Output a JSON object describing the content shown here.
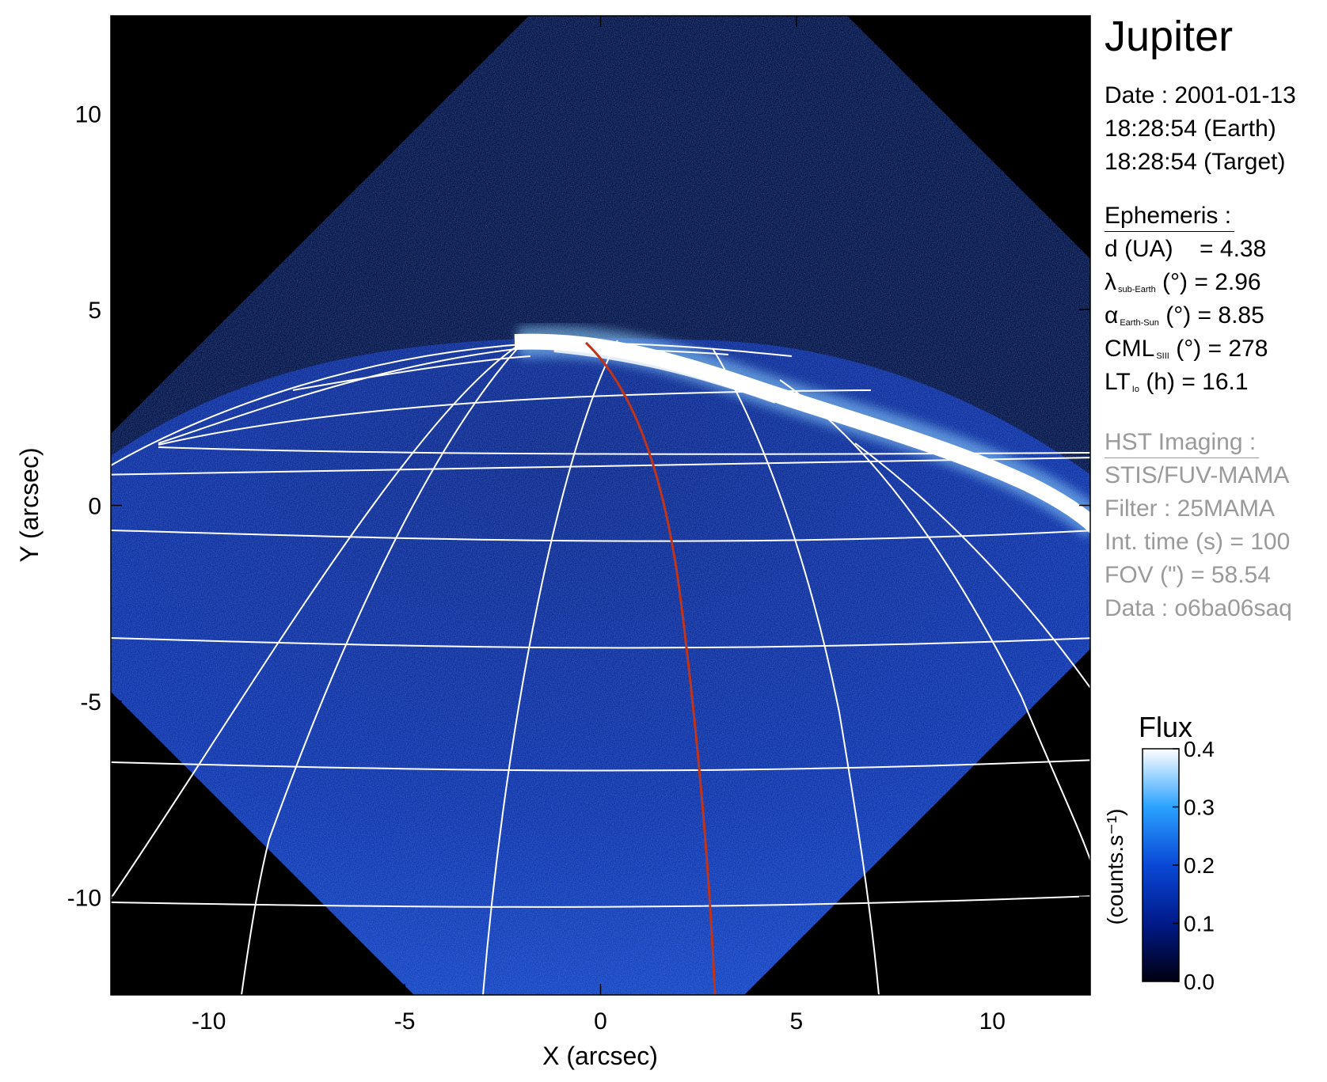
{
  "title": "Jupiter",
  "date": {
    "date_line": "Date : 2001-01-13",
    "earth_line": "18:28:54 (Earth)",
    "target_line": "18:28:54 (Target)"
  },
  "ephemeris": {
    "header": "Ephemeris :",
    "d_label": "d (UA)",
    "d_value": "= 4.38",
    "lambda_symbol": "λ",
    "lambda_sub": "sub-Earth",
    "lambda_rest": "(°) = 2.96",
    "alpha_symbol": "α",
    "alpha_sub": "Earth-Sun",
    "alpha_rest": "(°) = 8.85",
    "cml_symbol": "CML",
    "cml_sub": "SIII",
    "cml_rest": "(°) = 278",
    "lt_symbol": "LT",
    "lt_sub": "Io",
    "lt_rest": "(h) = 16.1"
  },
  "hst": {
    "header": "HST Imaging :",
    "instrument": "STIS/FUV-MAMA",
    "filter": "Filter : 25MAMA",
    "int_time": "Int. time (s) = 100",
    "fov": "FOV (\") = 58.54",
    "data": "Data : o6ba06saq"
  },
  "image_axes": {
    "xlabel": "X (arcsec)",
    "ylabel": "Y (arcsec)",
    "xlim": [
      -12.5,
      12.5
    ],
    "ylim": [
      -12.5,
      12.5
    ],
    "x_ticks": [
      "-10",
      "-5",
      "0",
      "5",
      "10"
    ],
    "x_tick_values": [
      -10,
      -5,
      0,
      5,
      10
    ],
    "y_ticks": [
      "10",
      "5",
      "0",
      "-5",
      "-10"
    ],
    "y_tick_values": [
      10,
      5,
      0,
      -5,
      -10
    ]
  },
  "colorbar": {
    "title": "Flux",
    "unit_label": "(counts.s⁻¹)",
    "tick_labels": [
      "0.4",
      "0.3",
      "0.2",
      "0.1",
      "0.0"
    ],
    "tick_values": [
      0.4,
      0.3,
      0.2,
      0.1,
      0.0
    ],
    "range": [
      0.0,
      0.4
    ],
    "colors": [
      "#000010",
      "#001a8a",
      "#0a48d6",
      "#2aa2ff",
      "#ffffff"
    ]
  },
  "colors": {
    "background": "#000000",
    "disk_blue": "#0b2c9c",
    "aurora": "#ffffff",
    "grid": "#ffffff",
    "meridian": "#c0341a",
    "muted_text": "#9a9a9a"
  }
}
